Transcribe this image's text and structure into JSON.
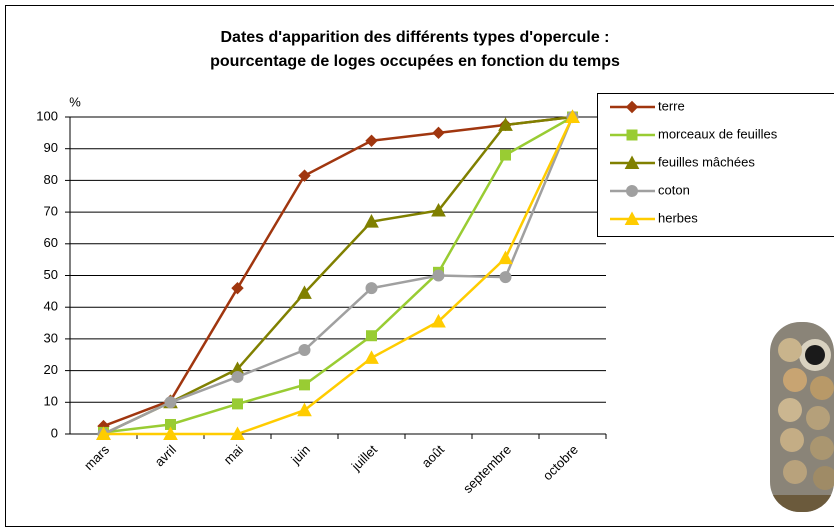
{
  "chart_data": {
    "type": "line",
    "title": [
      "Dates d'apparition des différents types d'opercule :",
      "pourcentage de loges occupées en fonction du temps"
    ],
    "y_label": "%",
    "categories": [
      "mars",
      "avril",
      "mai",
      "juin",
      "juillet",
      "août",
      "septembre",
      "octobre"
    ],
    "series": [
      {
        "name": "terre",
        "color": "#a0360f",
        "marker": "diamond",
        "values": [
          2.5,
          10.5,
          46,
          81.5,
          92.5,
          95,
          97.5,
          100
        ]
      },
      {
        "name": "morceaux de feuilles",
        "color": "#99cc33",
        "marker": "square",
        "values": [
          0.5,
          3,
          9.5,
          15.5,
          31,
          51,
          88,
          100
        ]
      },
      {
        "name": "feuilles mâchées",
        "color": "#808000",
        "marker": "triangle",
        "values": [
          0,
          10,
          20.5,
          44.5,
          67,
          70.5,
          97.5,
          100
        ]
      },
      {
        "name": "coton",
        "color": "#a0a0a0",
        "marker": "circle",
        "values": [
          0,
          10,
          18,
          26.5,
          46,
          50,
          49.5,
          100
        ]
      },
      {
        "name": "herbes",
        "color": "#ffcc00",
        "marker": "triangle",
        "values": [
          0,
          0,
          0,
          7.5,
          24,
          35.5,
          55.5,
          100
        ]
      }
    ],
    "ylim": [
      0,
      100
    ],
    "yticks": [
      0,
      10,
      20,
      30,
      40,
      50,
      60,
      70,
      80,
      90,
      100
    ],
    "grid": true,
    "legend": "top-right"
  }
}
